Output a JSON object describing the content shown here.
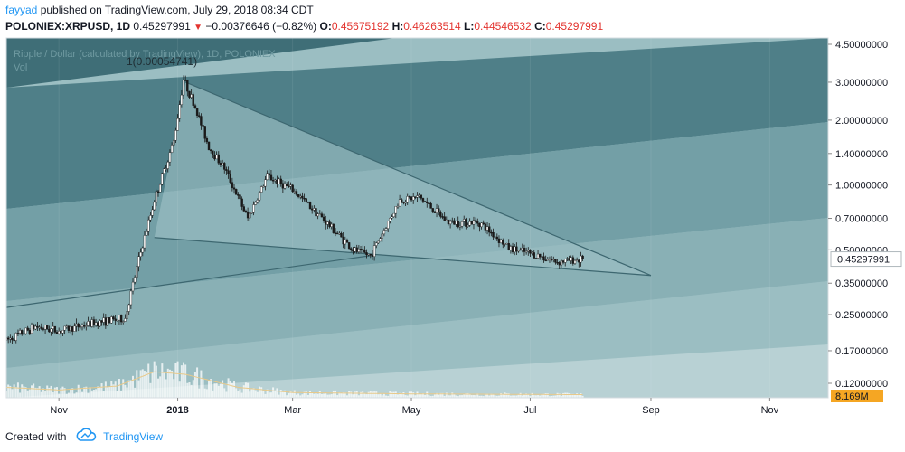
{
  "header": {
    "author": "fayyad",
    "published_text": "published on TradingView.com, July 29, 2018 08:34 CDT"
  },
  "symbol_line": {
    "symbol": "POLONIEX:XRPUSD, 1D",
    "last": "0.45297991",
    "change": "−0.00376646 (−0.82%)",
    "open_label": "O:",
    "open": "0.45675192",
    "high_label": "H:",
    "high": "0.46263514",
    "low_label": "L:",
    "low": "0.44546532",
    "close_label": "C:",
    "close": "0.45297991"
  },
  "chart_overlay": {
    "title": "Ripple / Dollar (calculated by TradingView), 1D, POLONIEX",
    "vol_label": "Vol",
    "fib_label": "1(0.00054741)"
  },
  "footer": {
    "created_with": "Created with",
    "brand": "TradingView"
  },
  "colors": {
    "accent": "#2196f3",
    "down": "#e3342f",
    "band_dark": "#4f7f88",
    "band_light": "#9bbec2"
  },
  "chart_data": {
    "type": "candlestick",
    "title": "Ripple / Dollar (calculated by TradingView), 1D, POLONIEX",
    "y_scale": "log",
    "ylim": [
      0.1,
      4.5
    ],
    "y_ticks": [
      {
        "value": 4.5,
        "label": "4.50000000"
      },
      {
        "value": 3.0,
        "label": "3.00000000"
      },
      {
        "value": 2.0,
        "label": "2.00000000"
      },
      {
        "value": 1.4,
        "label": "1.40000000"
      },
      {
        "value": 1.0,
        "label": "1.00000000"
      },
      {
        "value": 0.7,
        "label": "0.70000000"
      },
      {
        "value": 0.5,
        "label": "0.50000000"
      },
      {
        "value": 0.35,
        "label": "0.35000000"
      },
      {
        "value": 0.25,
        "label": "0.25000000"
      },
      {
        "value": 0.17,
        "label": "0.17000000"
      },
      {
        "value": 0.12,
        "label": "0.12000000"
      }
    ],
    "x_ticks": [
      {
        "date": "2017-11-01",
        "label": "Nov"
      },
      {
        "date": "2018-01-01",
        "label": "2018"
      },
      {
        "date": "2018-03-01",
        "label": "Mar"
      },
      {
        "date": "2018-05-01",
        "label": "May"
      },
      {
        "date": "2018-07-01",
        "label": "Jul"
      },
      {
        "date": "2018-09-01",
        "label": "Sep"
      },
      {
        "date": "2018-11-01",
        "label": "Nov"
      }
    ],
    "xlim": [
      "2017-10-05",
      "2018-12-01"
    ],
    "last_price": {
      "value": 0.45297991,
      "label": "0.45297991"
    },
    "volume_badge": "8.169M",
    "price_path": [
      [
        "2017-10-05",
        0.19
      ],
      [
        "2017-10-20",
        0.22
      ],
      [
        "2017-11-01",
        0.21
      ],
      [
        "2017-11-20",
        0.23
      ],
      [
        "2017-12-05",
        0.24
      ],
      [
        "2017-12-12",
        0.45
      ],
      [
        "2017-12-20",
        0.85
      ],
      [
        "2017-12-30",
        1.6
      ],
      [
        "2018-01-04",
        3.1
      ],
      [
        "2018-01-10",
        2.3
      ],
      [
        "2018-01-17",
        1.5
      ],
      [
        "2018-01-25",
        1.2
      ],
      [
        "2018-02-06",
        0.7
      ],
      [
        "2018-02-16",
        1.1
      ],
      [
        "2018-03-01",
        0.95
      ],
      [
        "2018-03-15",
        0.72
      ],
      [
        "2018-04-01",
        0.5
      ],
      [
        "2018-04-10",
        0.47
      ],
      [
        "2018-04-25",
        0.85
      ],
      [
        "2018-05-05",
        0.88
      ],
      [
        "2018-05-20",
        0.67
      ],
      [
        "2018-06-05",
        0.67
      ],
      [
        "2018-06-20",
        0.51
      ],
      [
        "2018-07-05",
        0.47
      ],
      [
        "2018-07-15",
        0.44
      ],
      [
        "2018-07-28",
        0.453
      ]
    ],
    "volume_path": [
      [
        "2017-10-05",
        0.4
      ],
      [
        "2017-11-01",
        0.3
      ],
      [
        "2017-12-01",
        0.45
      ],
      [
        "2017-12-20",
        1.0
      ],
      [
        "2018-01-05",
        0.9
      ],
      [
        "2018-02-01",
        0.4
      ],
      [
        "2018-03-01",
        0.2
      ],
      [
        "2018-05-01",
        0.15
      ],
      [
        "2018-07-28",
        0.12
      ]
    ],
    "trendlines": [
      {
        "name": "descending-resistance",
        "from": [
          "2018-01-05",
          3.0
        ],
        "to": [
          "2018-09-01",
          0.38
        ]
      },
      {
        "name": "support-base",
        "from": [
          "2017-12-20",
          0.57
        ],
        "to": [
          "2018-09-01",
          0.38
        ]
      },
      {
        "name": "support-lower",
        "from": [
          "2017-10-05",
          0.27
        ],
        "to": [
          "2018-04-10",
          0.47
        ]
      }
    ]
  }
}
